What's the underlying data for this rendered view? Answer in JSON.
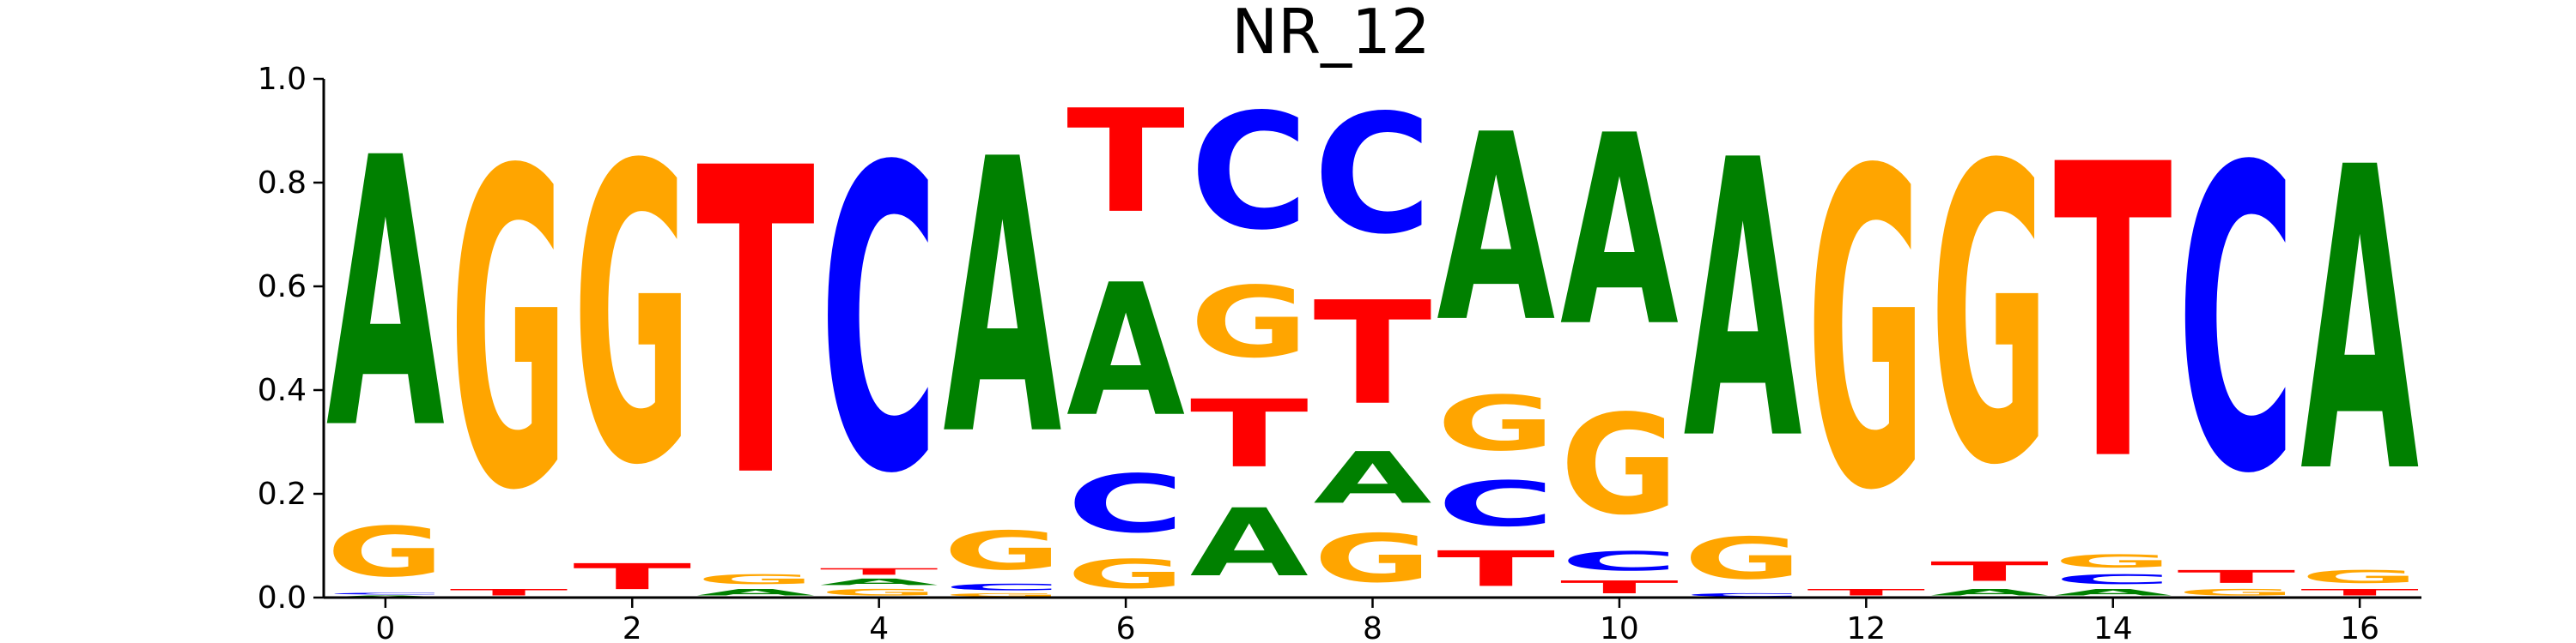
{
  "chart_data": {
    "type": "sequence-logo",
    "title": "NR_12",
    "xlabel": "",
    "ylabel": "",
    "xlim": [
      -0.5,
      16.5
    ],
    "ylim": [
      0,
      1
    ],
    "x_ticks": [
      0,
      2,
      4,
      6,
      8,
      10,
      12,
      14,
      16
    ],
    "y_ticks": [
      "0.0",
      "0.2",
      "0.4",
      "0.6",
      "0.8",
      "1.0"
    ],
    "grid": false,
    "legend": "none",
    "colors": {
      "A": "#008000",
      "C": "#0000ff",
      "G": "#ffa500",
      "T": "#ff0000"
    },
    "positions": [
      {
        "x": 0,
        "stack": [
          [
            "A",
            0.005
          ],
          [
            "C",
            0.005
          ],
          [
            "T",
            0.0
          ],
          [
            "G",
            0.155
          ],
          [
            "A",
            0.835
          ]
        ]
      },
      {
        "x": 1,
        "stack": [
          [
            "T",
            0.02
          ],
          [
            "G",
            0.98
          ]
        ]
      },
      {
        "x": 2,
        "stack": [
          [
            "T",
            0.08
          ],
          [
            "G",
            0.92
          ]
        ]
      },
      {
        "x": 3,
        "stack": [
          [
            "A",
            0.02
          ],
          [
            "G",
            0.03
          ],
          [
            "T",
            0.95
          ]
        ]
      },
      {
        "x": 4,
        "stack": [
          [
            "G",
            0.02
          ],
          [
            "A",
            0.02
          ],
          [
            "T",
            0.02
          ],
          [
            "C",
            0.94
          ]
        ]
      },
      {
        "x": 5,
        "stack": [
          [
            "G",
            0.01
          ],
          [
            "C",
            0.02
          ],
          [
            "G",
            0.12
          ],
          [
            "A",
            0.85
          ]
        ]
      },
      {
        "x": 6,
        "stack": [
          [
            "G",
            0.09
          ],
          [
            "C",
            0.18
          ],
          [
            "A",
            0.41
          ],
          [
            "T",
            0.32
          ]
        ]
      },
      {
        "x": 7,
        "stack": [
          [
            "A",
            0.21
          ],
          [
            "T",
            0.21
          ],
          [
            "G",
            0.22
          ],
          [
            "C",
            0.36
          ]
        ]
      },
      {
        "x": 8,
        "stack": [
          [
            "G",
            0.15
          ],
          [
            "A",
            0.16
          ],
          [
            "T",
            0.32
          ],
          [
            "C",
            0.37
          ]
        ]
      },
      {
        "x": 9,
        "stack": [
          [
            "T",
            0.11
          ],
          [
            "C",
            0.14
          ],
          [
            "G",
            0.17
          ],
          [
            "A",
            0.58
          ]
        ]
      },
      {
        "x": 10,
        "stack": [
          [
            "T",
            0.04
          ],
          [
            "C",
            0.06
          ],
          [
            "G",
            0.31
          ],
          [
            "A",
            0.59
          ]
        ]
      },
      {
        "x": 11,
        "stack": [
          [
            "C",
            0.01
          ],
          [
            "G",
            0.13
          ],
          [
            "A",
            0.86
          ]
        ]
      },
      {
        "x": 12,
        "stack": [
          [
            "T",
            0.02
          ],
          [
            "G",
            0.98
          ]
        ]
      },
      {
        "x": 13,
        "stack": [
          [
            "A",
            0.02
          ],
          [
            "T",
            0.06
          ],
          [
            "G",
            0.92
          ]
        ]
      },
      {
        "x": 14,
        "stack": [
          [
            "A",
            0.02
          ],
          [
            "C",
            0.03
          ],
          [
            "G",
            0.04
          ],
          [
            "T",
            0.91
          ]
        ]
      },
      {
        "x": 15,
        "stack": [
          [
            "G",
            0.02
          ],
          [
            "T",
            0.04
          ],
          [
            "C",
            0.94
          ]
        ]
      },
      {
        "x": 16,
        "stack": [
          [
            "T",
            0.02
          ],
          [
            "G",
            0.04
          ],
          [
            "A",
            0.94
          ]
        ]
      }
    ]
  }
}
